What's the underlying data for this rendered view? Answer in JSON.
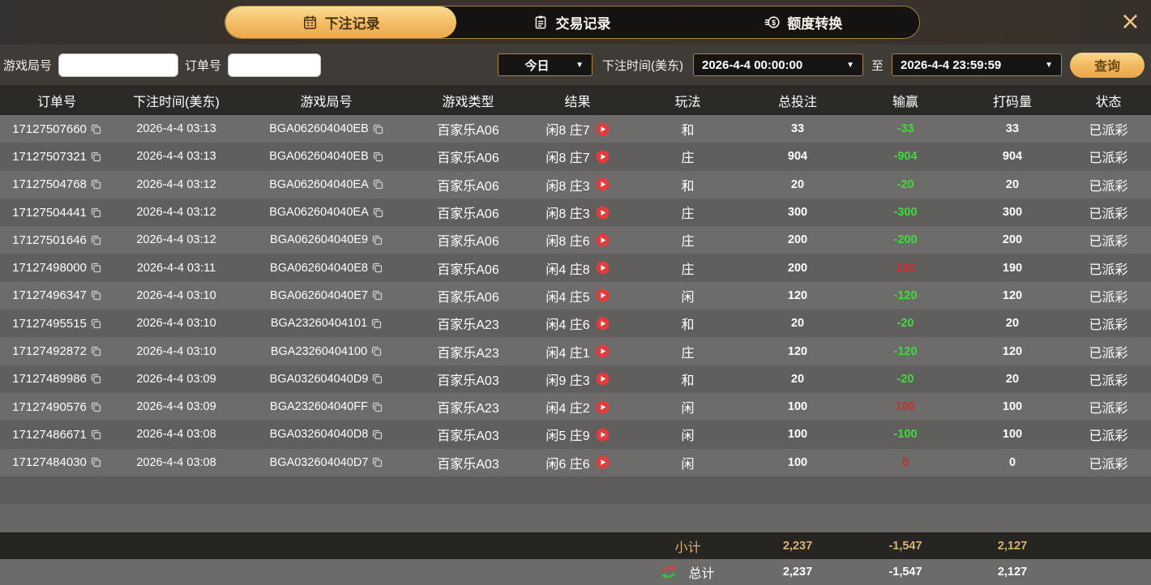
{
  "header": {
    "tabs": [
      {
        "label": "下注记录",
        "icon": "calendar-icon",
        "active": true
      },
      {
        "label": "交易记录",
        "icon": "clipboard-icon",
        "active": false
      },
      {
        "label": "额度转换",
        "icon": "coins-icon",
        "active": false
      }
    ],
    "close_icon": "×"
  },
  "filters": {
    "game_round_label": "游戏局号",
    "game_round_value": "",
    "order_no_label": "订单号",
    "order_no_value": "",
    "preset_value": "今日",
    "bet_time_label": "下注时间(美东)",
    "start_time": "2026-4-4 00:00:00",
    "to_label": "至",
    "end_time": "2026-4-4 23:59:59",
    "query_label": "查询",
    "dropdown_arrow": "▼"
  },
  "table": {
    "columns": [
      "订单号",
      "下注时间(美东)",
      "游戏局号",
      "游戏类型",
      "结果",
      "玩法",
      "总投注",
      "输赢",
      "打码量",
      "状态"
    ],
    "rows": [
      {
        "order": "17127507660",
        "time": "2026-4-4 03:13",
        "round": "BGA062604040EB",
        "game": "百家乐A06",
        "result": "闲8 庄7",
        "play": "和",
        "bet": "33",
        "win": "-33",
        "turnover": "33",
        "status": "已派彩"
      },
      {
        "order": "17127507321",
        "time": "2026-4-4 03:13",
        "round": "BGA062604040EB",
        "game": "百家乐A06",
        "result": "闲8 庄7",
        "play": "庄",
        "bet": "904",
        "win": "-904",
        "turnover": "904",
        "status": "已派彩"
      },
      {
        "order": "17127504768",
        "time": "2026-4-4 03:12",
        "round": "BGA062604040EA",
        "game": "百家乐A06",
        "result": "闲8 庄3",
        "play": "和",
        "bet": "20",
        "win": "-20",
        "turnover": "20",
        "status": "已派彩"
      },
      {
        "order": "17127504441",
        "time": "2026-4-4 03:12",
        "round": "BGA062604040EA",
        "game": "百家乐A06",
        "result": "闲8 庄3",
        "play": "庄",
        "bet": "300",
        "win": "-300",
        "turnover": "300",
        "status": "已派彩"
      },
      {
        "order": "17127501646",
        "time": "2026-4-4 03:12",
        "round": "BGA062604040E9",
        "game": "百家乐A06",
        "result": "闲8 庄6",
        "play": "庄",
        "bet": "200",
        "win": "-200",
        "turnover": "200",
        "status": "已派彩"
      },
      {
        "order": "17127498000",
        "time": "2026-4-4 03:11",
        "round": "BGA062604040E8",
        "game": "百家乐A06",
        "result": "闲4 庄8",
        "play": "庄",
        "bet": "200",
        "win": "190",
        "turnover": "190",
        "status": "已派彩"
      },
      {
        "order": "17127496347",
        "time": "2026-4-4 03:10",
        "round": "BGA062604040E7",
        "game": "百家乐A06",
        "result": "闲4 庄5",
        "play": "闲",
        "bet": "120",
        "win": "-120",
        "turnover": "120",
        "status": "已派彩"
      },
      {
        "order": "17127495515",
        "time": "2026-4-4 03:10",
        "round": "BGA23260404101",
        "game": "百家乐A23",
        "result": "闲4 庄6",
        "play": "和",
        "bet": "20",
        "win": "-20",
        "turnover": "20",
        "status": "已派彩"
      },
      {
        "order": "17127492872",
        "time": "2026-4-4 03:10",
        "round": "BGA23260404100",
        "game": "百家乐A23",
        "result": "闲4 庄1",
        "play": "庄",
        "bet": "120",
        "win": "-120",
        "turnover": "120",
        "status": "已派彩"
      },
      {
        "order": "17127489986",
        "time": "2026-4-4 03:09",
        "round": "BGA032604040D9",
        "game": "百家乐A03",
        "result": "闲9 庄3",
        "play": "和",
        "bet": "20",
        "win": "-20",
        "turnover": "20",
        "status": "已派彩"
      },
      {
        "order": "17127490576",
        "time": "2026-4-4 03:09",
        "round": "BGA232604040FF",
        "game": "百家乐A23",
        "result": "闲4 庄2",
        "play": "闲",
        "bet": "100",
        "win": "100",
        "turnover": "100",
        "status": "已派彩"
      },
      {
        "order": "17127486671",
        "time": "2026-4-4 03:08",
        "round": "BGA032604040D8",
        "game": "百家乐A03",
        "result": "闲5 庄9",
        "play": "闲",
        "bet": "100",
        "win": "-100",
        "turnover": "100",
        "status": "已派彩"
      },
      {
        "order": "17127484030",
        "time": "2026-4-4 03:08",
        "round": "BGA032604040D7",
        "game": "百家乐A03",
        "result": "闲6 庄6",
        "play": "闲",
        "bet": "100",
        "win": "0",
        "turnover": "0",
        "status": "已派彩"
      }
    ]
  },
  "footer": {
    "subtotal_label": "小计",
    "subtotal": {
      "bet": "2,237",
      "win": "-1,547",
      "turnover": "2,127"
    },
    "total_label": "总计",
    "total": {
      "bet": "2,237",
      "win": "-1,547",
      "turnover": "2,127"
    }
  },
  "colors": {
    "accent_gold": "#f0b85c",
    "header_text_gold": "#d9b271",
    "loss_green": "#3fdb3b",
    "win_red": "#c5302b",
    "result_play_red": "#e23c3c"
  }
}
